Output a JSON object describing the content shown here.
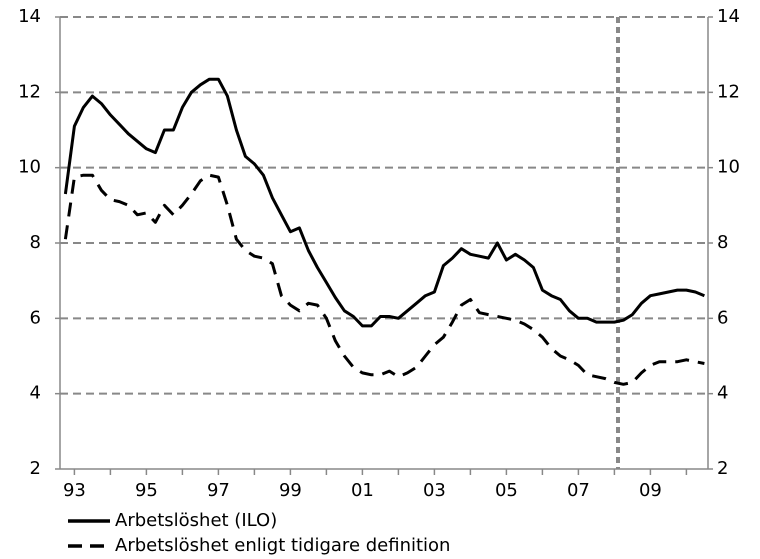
{
  "chart_data": {
    "type": "line",
    "x": [
      1992.75,
      1993,
      1993.25,
      1993.5,
      1993.75,
      1994,
      1994.25,
      1994.5,
      1994.75,
      1995,
      1995.25,
      1995.5,
      1995.75,
      1996,
      1996.25,
      1996.5,
      1996.75,
      1997,
      1997.25,
      1997.5,
      1997.75,
      1998,
      1998.25,
      1998.5,
      1998.75,
      1999,
      1999.25,
      1999.5,
      1999.75,
      2000,
      2000.25,
      2000.5,
      2000.75,
      2001,
      2001.25,
      2001.5,
      2001.75,
      2002,
      2002.25,
      2002.5,
      2002.75,
      2003,
      2003.25,
      2003.5,
      2003.75,
      2004,
      2004.25,
      2004.5,
      2004.75,
      2005,
      2005.25,
      2005.5,
      2005.75,
      2006,
      2006.25,
      2006.5,
      2006.75,
      2007,
      2007.25,
      2007.5,
      2007.75,
      2008,
      2008.25,
      2008.5,
      2008.75,
      2009,
      2009.25,
      2009.5,
      2009.75,
      2010,
      2010.25,
      2010.5
    ],
    "series": [
      {
        "name": "Arbetslöshet (ILO)",
        "color": "#000000",
        "dash": "solid",
        "values": [
          9.3,
          11.1,
          11.6,
          11.9,
          11.7,
          11.4,
          11.15,
          10.9,
          10.7,
          10.5,
          10.4,
          11.0,
          11.0,
          11.6,
          12.0,
          12.2,
          12.35,
          12.35,
          11.9,
          11.0,
          10.3,
          10.1,
          9.8,
          9.2,
          8.75,
          8.3,
          8.4,
          7.8,
          7.35,
          6.95,
          6.55,
          6.2,
          6.05,
          5.8,
          5.8,
          6.05,
          6.05,
          6.0,
          6.2,
          6.4,
          6.6,
          6.7,
          7.4,
          7.6,
          7.85,
          7.7,
          7.65,
          7.6,
          8.0,
          7.55,
          7.7,
          7.55,
          7.35,
          6.75,
          6.6,
          6.5,
          6.2,
          6.0,
          6.0,
          5.9,
          5.9,
          5.9,
          5.95,
          6.1,
          6.4,
          6.6,
          6.65,
          6.7,
          6.75,
          6.75,
          6.7,
          6.6
        ]
      },
      {
        "name": "Arbetslöshet enligt tidigare definition",
        "color": "#000000",
        "dash": "dashed",
        "values": [
          8.1,
          9.75,
          9.8,
          9.8,
          9.4,
          9.15,
          9.1,
          9.0,
          8.75,
          8.8,
          8.55,
          9.0,
          8.75,
          9.0,
          9.3,
          9.65,
          9.8,
          9.75,
          9.0,
          8.1,
          7.8,
          7.65,
          7.6,
          7.45,
          6.6,
          6.35,
          6.2,
          6.4,
          6.35,
          6.0,
          5.4,
          5.0,
          4.7,
          4.55,
          4.5,
          4.5,
          4.6,
          4.45,
          4.55,
          4.7,
          5.0,
          5.3,
          5.5,
          5.9,
          6.35,
          6.5,
          6.15,
          6.1,
          6.05,
          6.0,
          5.95,
          5.85,
          5.7,
          5.5,
          5.2,
          5.0,
          4.9,
          4.75,
          4.5,
          4.45,
          4.4,
          4.3,
          4.25,
          4.3,
          4.55,
          4.75,
          4.85,
          4.85,
          4.85,
          4.9,
          4.85,
          4.8
        ]
      }
    ],
    "xlim": [
      1992.6,
      2010.6
    ],
    "xticks": [
      {
        "value": 1993,
        "label": "93"
      },
      {
        "value": 1995,
        "label": "95"
      },
      {
        "value": 1997,
        "label": "97"
      },
      {
        "value": 1999,
        "label": "99"
      },
      {
        "value": 2001,
        "label": "01"
      },
      {
        "value": 2003,
        "label": "03"
      },
      {
        "value": 2005,
        "label": "05"
      },
      {
        "value": 2007,
        "label": "07"
      },
      {
        "value": 2009,
        "label": "09"
      }
    ],
    "xminor_ticks": [
      1994,
      1996,
      1998,
      2000,
      2002,
      2004,
      2006,
      2008,
      2010
    ],
    "ylim": [
      2,
      14
    ],
    "yticks": [
      2,
      4,
      6,
      8,
      10,
      12,
      14
    ],
    "y2lim": [
      2,
      14
    ],
    "y2ticks": [
      2,
      4,
      6,
      8,
      10,
      12,
      14
    ],
    "grid": true,
    "forecast_line": 2008.1,
    "legend": "bottom-left"
  }
}
